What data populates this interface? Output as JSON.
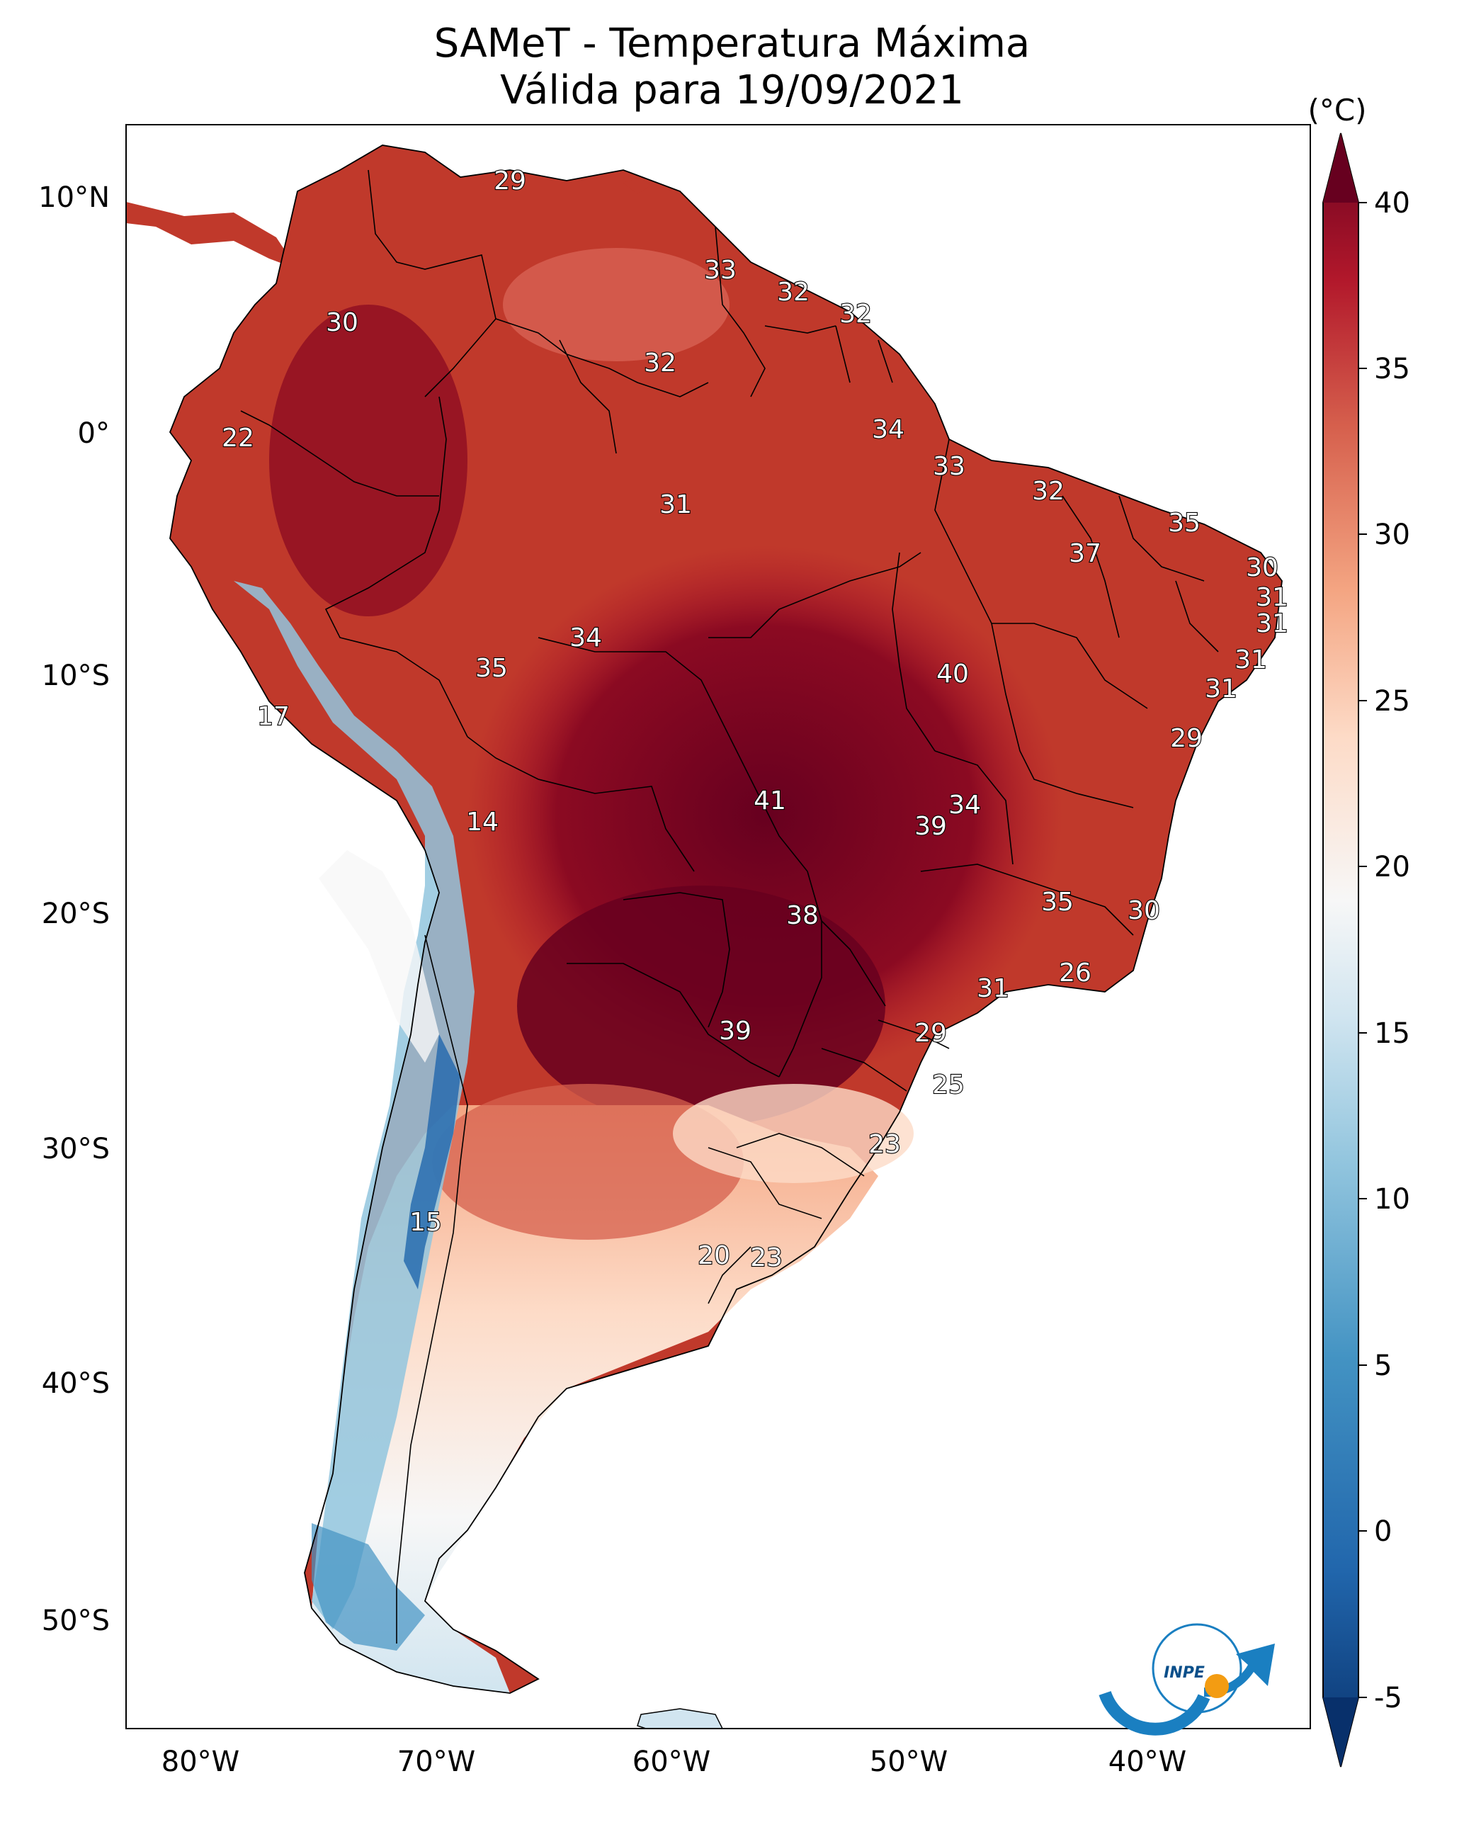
{
  "title": {
    "line1": "SAMeT - Temperatura Máxima",
    "line2": "Válida para 19/09/2021"
  },
  "axes": {
    "lon_ticks": [
      "80°W",
      "70°W",
      "60°W",
      "50°W",
      "40°W"
    ],
    "lat_ticks": [
      "10°N",
      "0°",
      "10°S",
      "20°S",
      "30°S",
      "40°S",
      "50°S"
    ]
  },
  "colorbar": {
    "unit": "(°C)",
    "ticks": [
      "40",
      "35",
      "30",
      "25",
      "20",
      "15",
      "10",
      "5",
      "0",
      "-5"
    ],
    "min": -5,
    "max": 40,
    "colors": {
      "low": "#08306b",
      "mid_low": "#4393c3",
      "mid": "#f7f7f7",
      "mid_high": "#d6604d",
      "high": "#67001f"
    }
  },
  "contour_labels": [
    "29",
    "33",
    "32",
    "32",
    "30",
    "32",
    "34",
    "22",
    "33",
    "32",
    "31",
    "35",
    "37",
    "30",
    "31",
    "31",
    "34",
    "35",
    "31",
    "40",
    "31",
    "17",
    "29",
    "34",
    "41",
    "14",
    "39",
    "38",
    "35",
    "30",
    "26",
    "31",
    "39",
    "29",
    "25",
    "23",
    "15",
    "20",
    "23"
  ],
  "logo": {
    "text": "INPE"
  },
  "colors": {
    "frame": "#000000",
    "ocean": "#ffffff",
    "border": "#000000"
  }
}
